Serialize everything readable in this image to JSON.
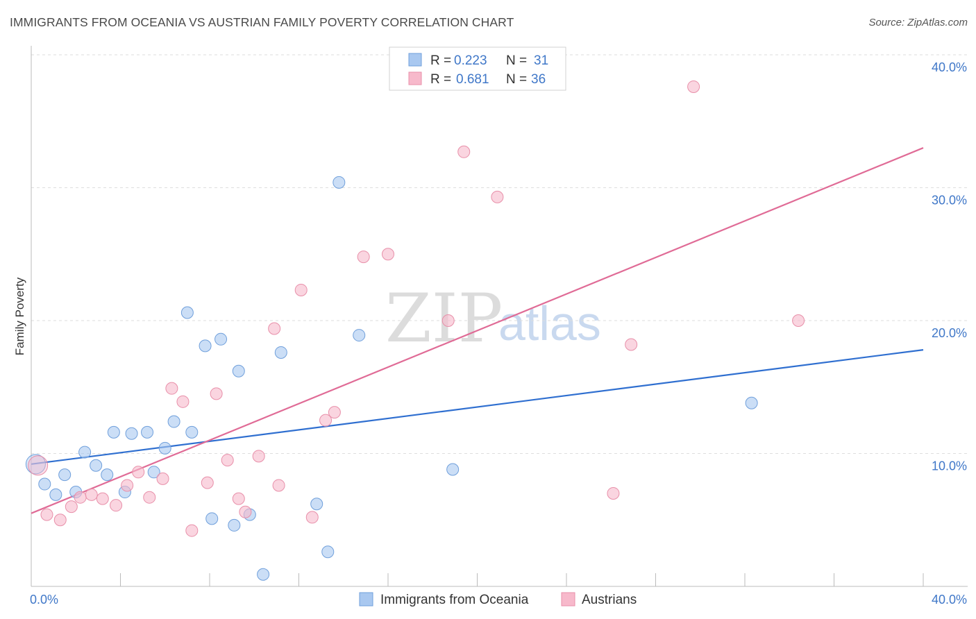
{
  "header": {
    "title": "IMMIGRANTS FROM OCEANIA VS AUSTRIAN FAMILY POVERTY CORRELATION CHART",
    "source": "Source: ZipAtlas.com"
  },
  "watermark": {
    "zip": "ZIP",
    "atlas": "atlas"
  },
  "legend": {
    "rows": [
      {
        "r_label": "R = ",
        "r_value": "0.223",
        "n_label": "N = ",
        "n_value": "31",
        "color": "#a9c8f0"
      },
      {
        "r_label": "R = ",
        "r_value": "0.681",
        "n_label": "N = ",
        "n_value": "36",
        "color": "#f7b9cb"
      }
    ]
  },
  "bottom_legend": {
    "items": [
      {
        "label": "Immigrants from Oceania",
        "color": "#a9c8f0"
      },
      {
        "label": "Austrians",
        "color": "#f7b9cb"
      }
    ]
  },
  "chart_data": {
    "type": "scatter",
    "title": "IMMIGRANTS FROM OCEANIA VS AUSTRIAN FAMILY POVERTY CORRELATION CHART",
    "xlabel": "",
    "ylabel": "Family Poverty",
    "xlim": [
      0,
      40
    ],
    "ylim": [
      0,
      40
    ],
    "x_tick_labels": [
      "0.0%",
      "40.0%"
    ],
    "y_ticks": [
      10,
      20,
      30,
      40
    ],
    "y_tick_labels": [
      "10.0%",
      "20.0%",
      "30.0%",
      "40.0%"
    ],
    "grid": true,
    "legend_position": "top-center",
    "colors": {
      "blue_fill": "#a9c8f0",
      "blue_stroke": "#6f9fdb",
      "blue_line": "#2f6fd0",
      "pink_fill": "#f7b9cb",
      "pink_stroke": "#e88fa9",
      "pink_line": "#e06b96"
    },
    "series": [
      {
        "name": "Immigrants from Oceania",
        "r": 0.223,
        "n": 31,
        "trend": {
          "x": [
            0,
            40
          ],
          "y": [
            9.2,
            17.8
          ]
        },
        "points": [
          [
            0.2,
            9.2
          ],
          [
            0.6,
            7.7
          ],
          [
            1.1,
            6.9
          ],
          [
            1.5,
            8.4
          ],
          [
            2.0,
            7.1
          ],
          [
            2.4,
            10.1
          ],
          [
            2.9,
            9.1
          ],
          [
            3.4,
            8.4
          ],
          [
            3.7,
            11.6
          ],
          [
            4.2,
            7.1
          ],
          [
            4.5,
            11.5
          ],
          [
            5.2,
            11.6
          ],
          [
            5.5,
            8.6
          ],
          [
            6.0,
            10.4
          ],
          [
            6.4,
            12.4
          ],
          [
            7.0,
            20.6
          ],
          [
            7.2,
            11.6
          ],
          [
            7.8,
            18.1
          ],
          [
            8.1,
            5.1
          ],
          [
            8.5,
            18.6
          ],
          [
            9.1,
            4.6
          ],
          [
            9.3,
            16.2
          ],
          [
            9.8,
            5.4
          ],
          [
            10.4,
            0.9
          ],
          [
            11.2,
            17.6
          ],
          [
            12.8,
            6.2
          ],
          [
            13.3,
            2.6
          ],
          [
            13.8,
            30.4
          ],
          [
            14.7,
            18.9
          ],
          [
            18.9,
            8.8
          ],
          [
            32.3,
            13.8
          ]
        ]
      },
      {
        "name": "Austrians",
        "r": 0.681,
        "n": 36,
        "trend": {
          "x": [
            0,
            40
          ],
          "y": [
            5.5,
            33.0
          ]
        },
        "points": [
          [
            0.3,
            9.1
          ],
          [
            0.7,
            5.4
          ],
          [
            1.3,
            5.0
          ],
          [
            1.8,
            6.0
          ],
          [
            2.2,
            6.7
          ],
          [
            2.7,
            6.9
          ],
          [
            3.2,
            6.6
          ],
          [
            3.8,
            6.1
          ],
          [
            4.3,
            7.6
          ],
          [
            4.8,
            8.6
          ],
          [
            5.3,
            6.7
          ],
          [
            5.9,
            8.1
          ],
          [
            6.3,
            14.9
          ],
          [
            6.8,
            13.9
          ],
          [
            7.2,
            4.2
          ],
          [
            7.9,
            7.8
          ],
          [
            8.3,
            14.5
          ],
          [
            8.8,
            9.5
          ],
          [
            9.3,
            6.6
          ],
          [
            9.6,
            5.6
          ],
          [
            10.2,
            9.8
          ],
          [
            10.9,
            19.4
          ],
          [
            11.1,
            7.6
          ],
          [
            12.1,
            22.3
          ],
          [
            12.6,
            5.2
          ],
          [
            13.2,
            12.5
          ],
          [
            13.6,
            13.1
          ],
          [
            14.9,
            24.8
          ],
          [
            16.0,
            25.0
          ],
          [
            18.7,
            20.0
          ],
          [
            19.4,
            32.7
          ],
          [
            20.9,
            29.3
          ],
          [
            26.1,
            7.0
          ],
          [
            26.9,
            18.2
          ],
          [
            29.7,
            37.6
          ],
          [
            34.4,
            20.0
          ]
        ]
      }
    ]
  }
}
